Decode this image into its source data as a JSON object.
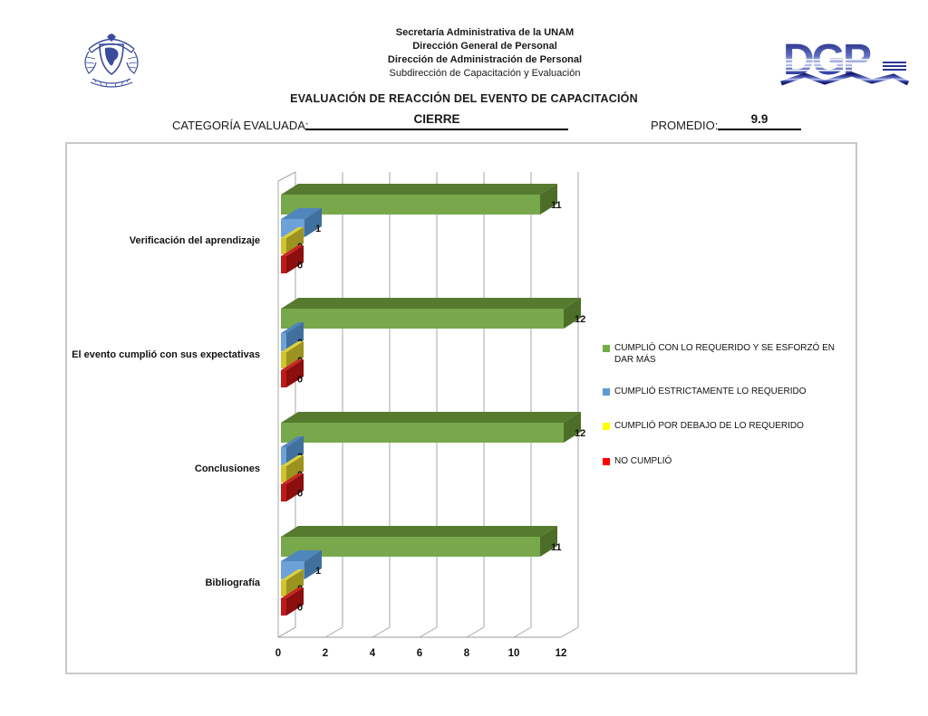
{
  "header": {
    "org_lines": [
      "Secretaría Administrativa de la UNAM",
      "Dirección General de Personal",
      "Dirección de Administración de Personal",
      "Subdirección de Capacitación y Evaluación"
    ],
    "title": "EVALUACIÓN DE REACCIÓN DEL EVENTO DE CAPACITACIÓN",
    "categoria_label": "CATEGORÍA EVALUADA:",
    "categoria_value": "CIERRE",
    "promedio_label": "PROMEDIO:",
    "promedio_value": "9.9",
    "unam_logo": "unam-crest",
    "dgp_logo_text": "DGP"
  },
  "chart_data": {
    "type": "bar",
    "orientation": "horizontal",
    "style": "3d",
    "title": "",
    "xlabel": "",
    "ylabel": "",
    "xlim": [
      0,
      12.5
    ],
    "x_ticks": [
      0,
      2,
      4,
      6,
      8,
      10,
      12
    ],
    "grid": true,
    "legend_position": "right",
    "categories": [
      "Verificación del aprendizaje",
      "El evento cumplió con sus expectativas",
      "Conclusiones",
      "Bibliografía"
    ],
    "series": [
      {
        "name": "CUMPLIÓ CON LO REQUERIDO Y SE ESFORZÓ EN DAR MÁS",
        "values": [
          11,
          12,
          12,
          11
        ],
        "color": "#78A84C",
        "color_top": "#567B2F",
        "color_side": "#4C6E28"
      },
      {
        "name": "CUMPLIÓ ESTRICTAMENTE LO REQUERIDO",
        "values": [
          1,
          0,
          0,
          1
        ],
        "color": "#6CA2D8",
        "color_top": "#4F86BC",
        "color_side": "#40709E"
      },
      {
        "name": "CUMPLIÓ POR DEBAJO DE LO REQUERIDO",
        "values": [
          0,
          0,
          0,
          0
        ],
        "color": "#CFC32F",
        "color_top": "#DCD23B",
        "color_side": "#9C921F"
      },
      {
        "name": "NO CUMPLIÓ",
        "values": [
          0,
          0,
          0,
          0
        ],
        "color": "#BE1A1A",
        "color_top": "#C92525",
        "color_side": "#8C0E0E"
      }
    ]
  },
  "legend": {
    "items": [
      {
        "label": "CUMPLIÓ CON LO REQUERIDO Y SE ESFORZÓ EN DAR MÁS",
        "color": "#70AD47"
      },
      {
        "label": "CUMPLIÓ ESTRICTAMENTE LO REQUERIDO",
        "color": "#5B9BD5"
      },
      {
        "label": "CUMPLIÓ POR DEBAJO DE LO REQUERIDO",
        "color": "#FFFF00"
      },
      {
        "label": "NO CUMPLIÓ",
        "color": "#FF0000"
      }
    ]
  }
}
